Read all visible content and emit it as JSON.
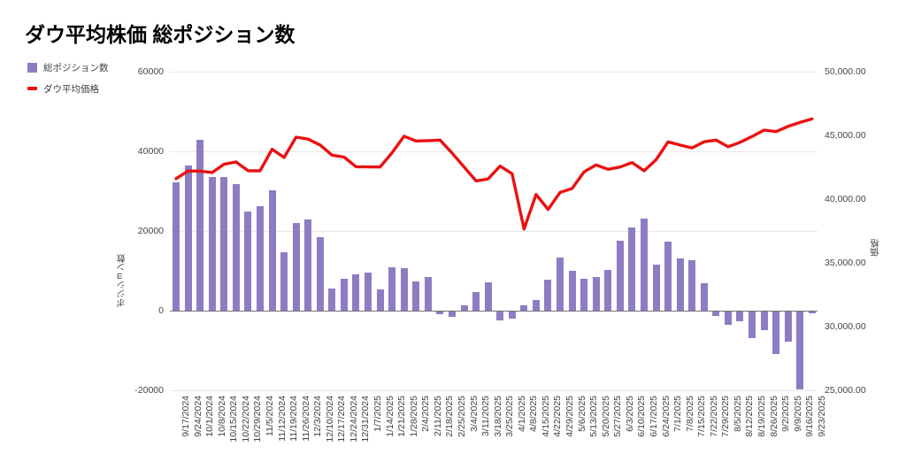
{
  "title": "ダウ平均株価 総ポジション数",
  "legend": {
    "bar_label": "総ポジション数",
    "line_label": "ダウ平均価格"
  },
  "colors": {
    "bar": "#8e7cc3",
    "line": "#ea1111",
    "grid": "#e8e8e8",
    "zero_line": "#757575",
    "tick_text": "#444444"
  },
  "chart_data": {
    "type": "combo-bar-line",
    "grid": "horizontal-only",
    "legend_position": "top-left",
    "categories": [
      "9/17/2024",
      "9/24/2024",
      "10/1/2024",
      "10/8/2024",
      "10/15/2024",
      "10/22/2024",
      "10/29/2024",
      "11/5/2024",
      "11/12/2024",
      "11/19/2024",
      "11/26/2024",
      "12/3/2024",
      "12/10/2024",
      "12/17/2024",
      "12/24/2024",
      "12/31/2024",
      "1/7/2025",
      "1/14/2025",
      "1/21/2025",
      "1/28/2025",
      "2/4/2025",
      "2/11/2025",
      "2/18/2025",
      "2/25/2025",
      "3/4/2025",
      "3/11/2025",
      "3/18/2025",
      "3/25/2025",
      "4/1/2025",
      "4/8/2025",
      "4/15/2025",
      "4/22/2025",
      "4/29/2025",
      "5/6/2025",
      "5/13/2025",
      "5/20/2025",
      "5/27/2025",
      "6/3/2025",
      "6/10/2025",
      "6/17/2025",
      "6/24/2025",
      "7/1/2025",
      "7/8/2025",
      "7/15/2025",
      "7/22/2025",
      "7/29/2025",
      "8/5/2025",
      "8/12/2025",
      "8/19/2025",
      "8/26/2025",
      "9/2/2025",
      "9/9/2025",
      "9/16/2025",
      "9/23/2025"
    ],
    "series": [
      {
        "name": "総ポジション数",
        "type": "bar",
        "axis": "left",
        "values": [
          32200,
          36400,
          42800,
          33600,
          33600,
          31700,
          25000,
          26300,
          30200,
          14700,
          21900,
          22800,
          18400,
          5600,
          8000,
          9100,
          9600,
          5400,
          11000,
          10600,
          7300,
          8400,
          -800,
          -1500,
          1400,
          4700,
          7200,
          -2400,
          -1900,
          1300,
          2600,
          7800,
          13300,
          9900,
          8000,
          8500,
          10200,
          17600,
          20800,
          23200,
          11600,
          17300,
          13200,
          12700,
          6900,
          -1300,
          -3500,
          -2700,
          -6800,
          -4800,
          -10900,
          -7700,
          -19800,
          -700
        ]
      },
      {
        "name": "ダウ平均価格",
        "type": "line",
        "axis": "right",
        "values": [
          41610,
          42210,
          42200,
          42080,
          42740,
          42920,
          42230,
          42220,
          43910,
          43270,
          44860,
          44710,
          44250,
          43450,
          43300,
          42540,
          42530,
          42520,
          43640,
          44940,
          44560,
          44590,
          44630,
          43620,
          42520,
          41430,
          41580,
          42590,
          41990,
          37650,
          40370,
          39190,
          40530,
          40830,
          42140,
          42680,
          42340,
          42520,
          42870,
          42220,
          43090,
          44490,
          44240,
          44020,
          44500,
          44630,
          44110,
          44460,
          44920,
          45420,
          45300,
          45710,
          46020,
          46290
        ]
      }
    ],
    "left_axis": {
      "title": "ポジション数",
      "min": -20000,
      "max": 60000,
      "ticks": [
        "60000",
        "40000",
        "20000",
        "0",
        "-20000"
      ]
    },
    "right_axis": {
      "title": "価格",
      "min": 25000,
      "max": 50000,
      "ticks": [
        "50,000.00",
        "45,000.00",
        "40,000.00",
        "35,000.00",
        "30,000.00",
        "25,000.00"
      ]
    }
  }
}
